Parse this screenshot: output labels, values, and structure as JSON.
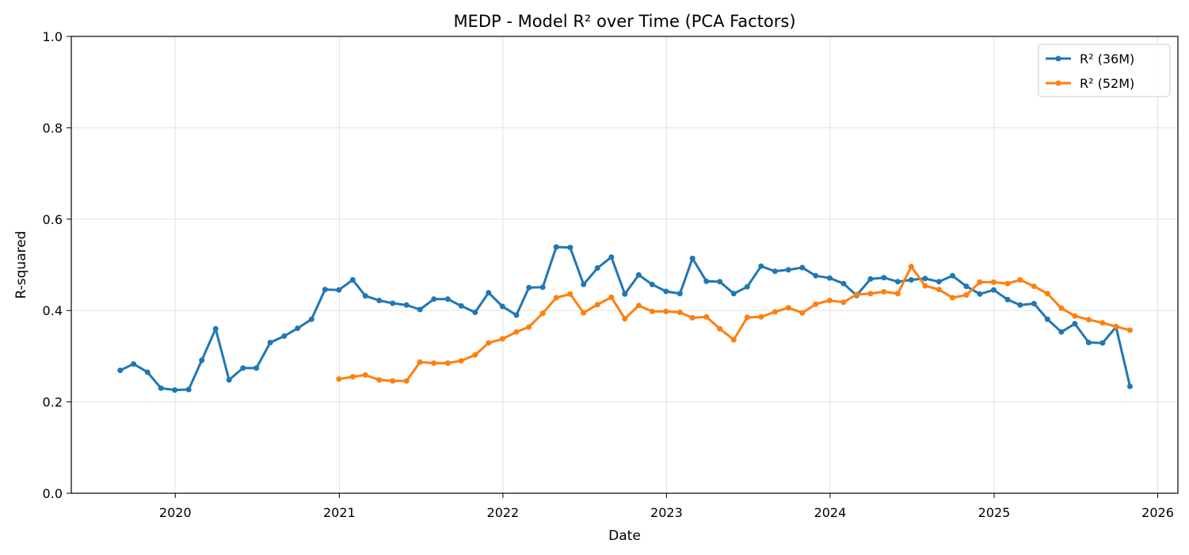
{
  "chart_data": {
    "type": "line",
    "title": "MEDP - Model R² over Time (PCA Factors)",
    "xlabel": "Date",
    "ylabel": "R-squared",
    "ylim": [
      0,
      1
    ],
    "xlim": [
      "2019-05-14",
      "2026-02-15"
    ],
    "x_ticks": [
      "2020",
      "2021",
      "2022",
      "2023",
      "2024",
      "2025",
      "2026"
    ],
    "y_ticks": [
      "0.0",
      "0.2",
      "0.4",
      "0.6",
      "0.8",
      "1.0"
    ],
    "grid": true,
    "legend_position": "top-right",
    "series": [
      {
        "name": "R² (36M)",
        "color": "#1f77b4",
        "x": [
          "2019-08-31",
          "2019-09-30",
          "2019-10-31",
          "2019-11-30",
          "2019-12-31",
          "2020-01-31",
          "2020-02-29",
          "2020-03-31",
          "2020-04-30",
          "2020-05-31",
          "2020-06-30",
          "2020-07-31",
          "2020-08-31",
          "2020-09-30",
          "2020-10-31",
          "2020-11-30",
          "2020-12-31",
          "2021-01-31",
          "2021-02-28",
          "2021-03-31",
          "2021-04-30",
          "2021-05-31",
          "2021-06-30",
          "2021-07-31",
          "2021-08-31",
          "2021-09-30",
          "2021-10-31",
          "2021-11-30",
          "2021-12-31",
          "2022-01-31",
          "2022-02-28",
          "2022-03-31",
          "2022-04-30",
          "2022-05-31",
          "2022-06-30",
          "2022-07-31",
          "2022-08-31",
          "2022-09-30",
          "2022-10-31",
          "2022-11-30",
          "2022-12-31",
          "2023-01-31",
          "2023-02-28",
          "2023-03-31",
          "2023-04-30",
          "2023-05-31",
          "2023-06-30",
          "2023-07-31",
          "2023-08-31",
          "2023-09-30",
          "2023-10-31",
          "2023-11-30",
          "2023-12-31",
          "2024-01-31",
          "2024-02-29",
          "2024-03-31",
          "2024-04-30",
          "2024-05-31",
          "2024-06-30",
          "2024-07-31",
          "2024-08-31",
          "2024-09-30",
          "2024-10-31",
          "2024-11-30",
          "2024-12-31",
          "2025-01-31",
          "2025-02-28",
          "2025-03-31",
          "2025-04-30",
          "2025-05-31",
          "2025-06-30",
          "2025-07-31",
          "2025-08-31",
          "2025-09-30",
          "2025-10-31"
        ],
        "values": [
          0.269,
          0.283,
          0.265,
          0.23,
          0.226,
          0.227,
          0.291,
          0.36,
          0.248,
          0.274,
          0.274,
          0.33,
          0.344,
          0.361,
          0.381,
          0.446,
          0.445,
          0.467,
          0.432,
          0.422,
          0.416,
          0.412,
          0.402,
          0.425,
          0.425,
          0.41,
          0.396,
          0.439,
          0.409,
          0.39,
          0.45,
          0.451,
          0.539,
          0.538,
          0.457,
          0.493,
          0.517,
          0.436,
          0.478,
          0.457,
          0.442,
          0.437,
          0.514,
          0.464,
          0.463,
          0.437,
          0.452,
          0.497,
          0.486,
          0.489,
          0.494,
          0.476,
          0.471,
          0.459,
          0.433,
          0.469,
          0.472,
          0.463,
          0.467,
          0.47,
          0.463,
          0.476,
          0.453,
          0.436,
          0.445,
          0.424,
          0.412,
          0.415,
          0.381,
          0.353,
          0.371,
          0.33,
          0.329,
          0.364,
          0.234
        ]
      },
      {
        "name": "R² (52M)",
        "color": "#ff7f0e",
        "x": [
          "2020-12-31",
          "2021-01-31",
          "2021-02-28",
          "2021-03-31",
          "2021-04-30",
          "2021-05-31",
          "2021-06-30",
          "2021-07-31",
          "2021-08-31",
          "2021-09-30",
          "2021-10-31",
          "2021-11-30",
          "2021-12-31",
          "2022-01-31",
          "2022-02-28",
          "2022-03-31",
          "2022-04-30",
          "2022-05-31",
          "2022-06-30",
          "2022-07-31",
          "2022-08-31",
          "2022-09-30",
          "2022-10-31",
          "2022-11-30",
          "2022-12-31",
          "2023-01-31",
          "2023-02-28",
          "2023-03-31",
          "2023-04-30",
          "2023-05-31",
          "2023-06-30",
          "2023-07-31",
          "2023-08-31",
          "2023-09-30",
          "2023-10-31",
          "2023-11-30",
          "2023-12-31",
          "2024-01-31",
          "2024-02-29",
          "2024-03-31",
          "2024-04-30",
          "2024-05-31",
          "2024-06-30",
          "2024-07-31",
          "2024-08-31",
          "2024-09-30",
          "2024-10-31",
          "2024-11-30",
          "2024-12-31",
          "2025-01-31",
          "2025-02-28",
          "2025-03-31",
          "2025-04-30",
          "2025-05-31",
          "2025-06-30",
          "2025-07-31",
          "2025-08-31",
          "2025-09-30",
          "2025-10-31"
        ],
        "values": [
          0.25,
          0.255,
          0.259,
          0.248,
          0.246,
          0.246,
          0.287,
          0.285,
          0.285,
          0.29,
          0.303,
          0.329,
          0.338,
          0.353,
          0.364,
          0.394,
          0.428,
          0.436,
          0.395,
          0.413,
          0.429,
          0.382,
          0.411,
          0.398,
          0.398,
          0.396,
          0.384,
          0.386,
          0.36,
          0.336,
          0.385,
          0.386,
          0.397,
          0.406,
          0.395,
          0.414,
          0.422,
          0.418,
          0.435,
          0.437,
          0.441,
          0.437,
          0.496,
          0.454,
          0.446,
          0.428,
          0.434,
          0.462,
          0.462,
          0.459,
          0.467,
          0.453,
          0.437,
          0.405,
          0.388,
          0.38,
          0.373,
          0.365,
          0.357
        ]
      }
    ]
  }
}
